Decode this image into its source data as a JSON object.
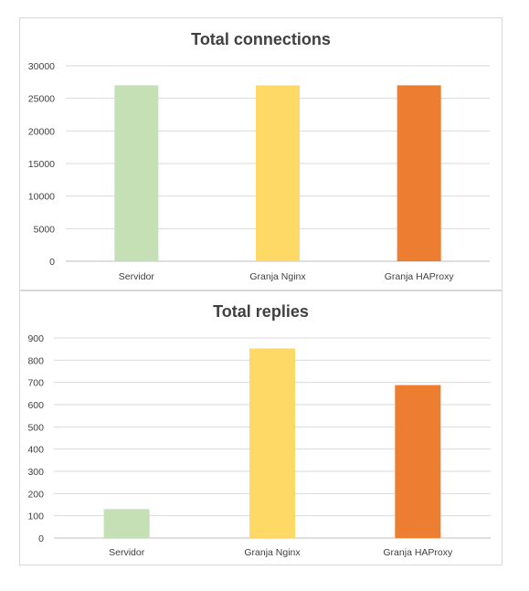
{
  "chart_data": [
    {
      "type": "bar",
      "title": "Total connections",
      "categories": [
        "Servidor",
        "Granja Nginx",
        "Granja HAProxy"
      ],
      "values": [
        27000,
        27000,
        27000
      ],
      "colors": [
        "#c5e0b4",
        "#ffd966",
        "#ed7d31"
      ],
      "ylim": [
        0,
        30000
      ],
      "yticks": [
        0,
        5000,
        10000,
        15000,
        20000,
        25000,
        30000
      ],
      "grid": true,
      "legend": "none"
    },
    {
      "type": "bar",
      "title": "Total replies",
      "categories": [
        "Servidor",
        "Granja Nginx",
        "Granja HAProxy"
      ],
      "values": [
        130,
        853,
        688
      ],
      "colors": [
        "#c5e0b4",
        "#ffd966",
        "#ed7d31"
      ],
      "ylim": [
        0,
        900
      ],
      "yticks": [
        0,
        100,
        200,
        300,
        400,
        500,
        600,
        700,
        800,
        900
      ],
      "grid": true,
      "legend": "none"
    }
  ]
}
